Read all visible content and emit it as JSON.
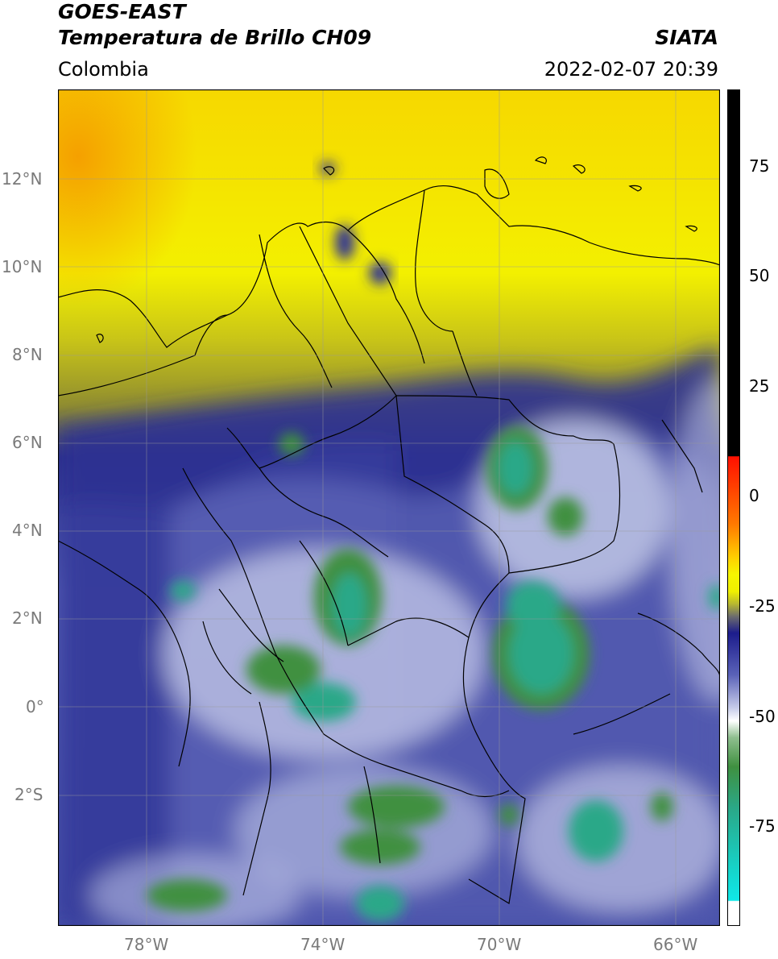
{
  "header": {
    "satellite": "GOES-EAST",
    "product": "Temperatura de Brillo CH09",
    "source": "SIATA",
    "region": "Colombia",
    "datetime": "2022-02-07 20:39"
  },
  "map": {
    "lon_range": [
      -80,
      -65
    ],
    "lat_range": [
      -5,
      14
    ],
    "lat_ticks": [
      {
        "value": 12,
        "label": "12°N"
      },
      {
        "value": 10,
        "label": "10°N"
      },
      {
        "value": 8,
        "label": "8°N"
      },
      {
        "value": 6,
        "label": "6°N"
      },
      {
        "value": 4,
        "label": "4°N"
      },
      {
        "value": 2,
        "label": "2°N"
      },
      {
        "value": 0,
        "label": "0°"
      },
      {
        "value": -2,
        "label": "2°S"
      }
    ],
    "lon_ticks": [
      {
        "value": -78,
        "label": "78°W"
      },
      {
        "value": -74,
        "label": "74°W"
      },
      {
        "value": -70,
        "label": "70°W"
      },
      {
        "value": -66,
        "label": "66°W"
      }
    ],
    "colors": {
      "warm_yellow": "#f3f000",
      "olive": "#9a9a2a",
      "dark_blue": "#1a1f8a",
      "light_blue": "#9aa2d8",
      "green": "#3f9040",
      "teal": "#2aa888",
      "orange": "#f5a000"
    }
  },
  "colorbar": {
    "range": [
      -100,
      90
    ],
    "ticks": [
      {
        "value": 75,
        "label": "75"
      },
      {
        "value": 50,
        "label": "50"
      },
      {
        "value": 25,
        "label": "25"
      },
      {
        "value": 0,
        "label": "0"
      },
      {
        "value": -25,
        "label": "-25"
      },
      {
        "value": -50,
        "label": "-50"
      },
      {
        "value": -75,
        "label": "-75"
      }
    ]
  }
}
